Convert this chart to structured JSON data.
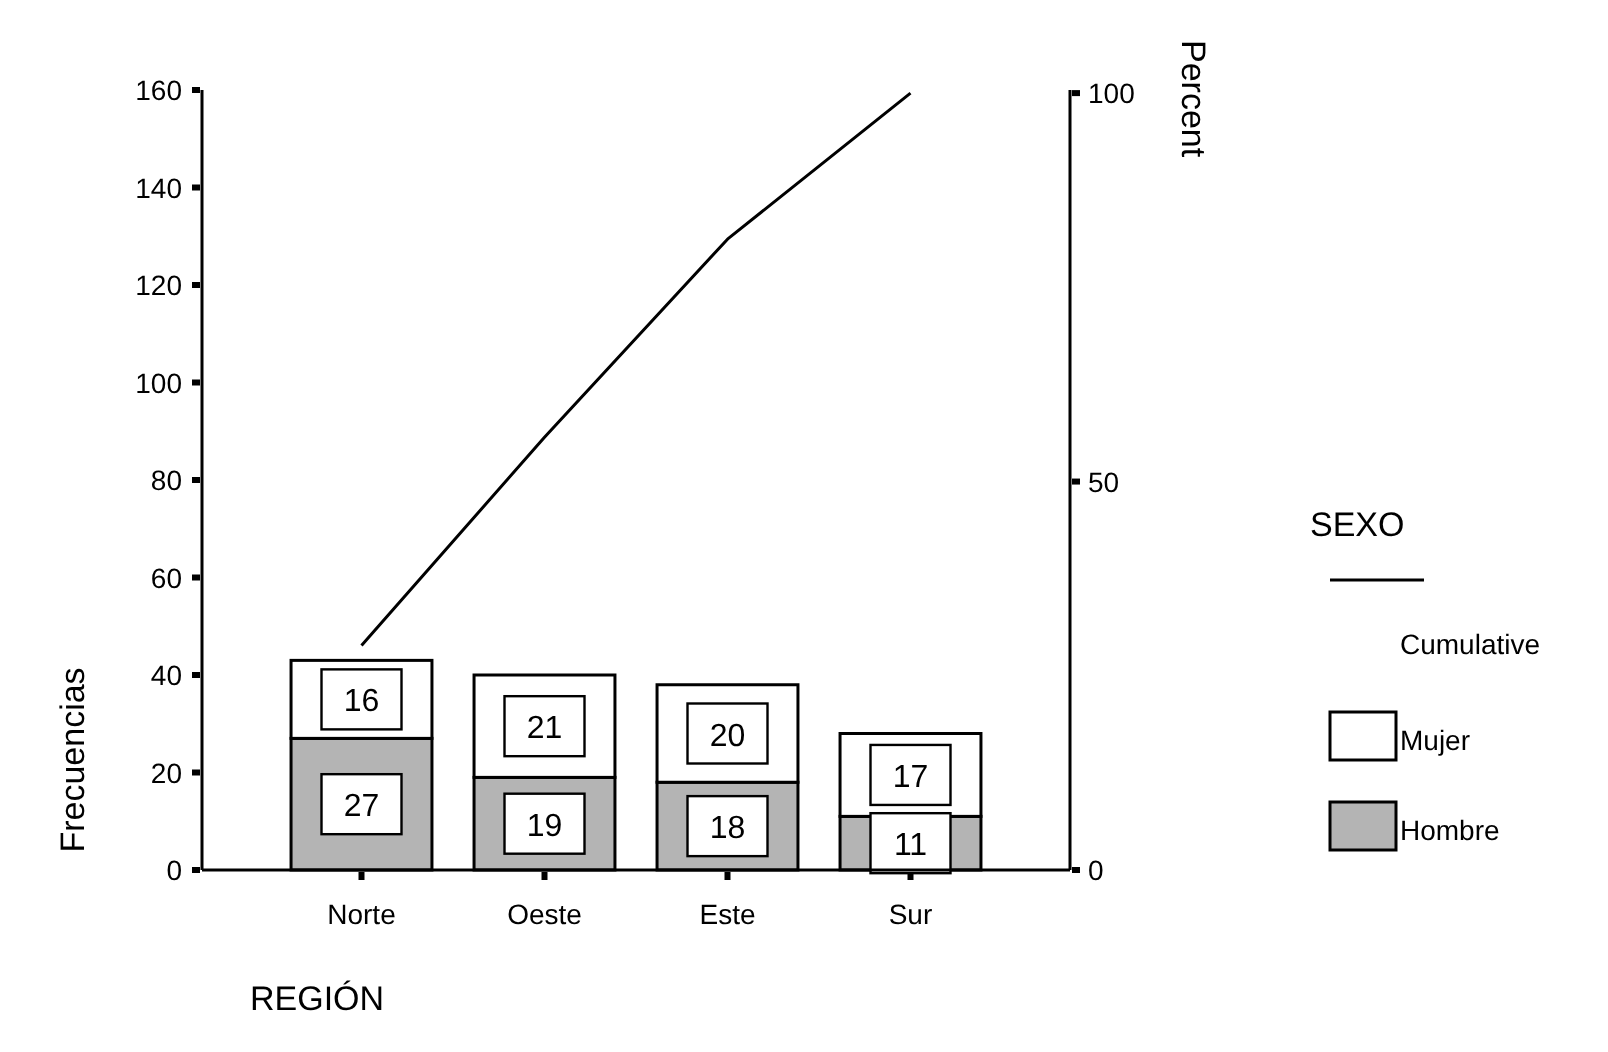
{
  "chart_data": {
    "type": "bar",
    "stacked": true,
    "xlabel": "REGIÓN",
    "ylabel": "Frecuencias",
    "y2label": "Percent",
    "legend_title": "SEXO",
    "categories": [
      "Norte",
      "Oeste",
      "Este",
      "Sur"
    ],
    "series": [
      {
        "name": "Hombre",
        "color": "#b4b4b4",
        "values": [
          27,
          19,
          18,
          11
        ],
        "value_labels": [
          "27",
          "19",
          "18",
          "11"
        ]
      },
      {
        "name": "Mujer",
        "color": "#ffffff",
        "values": [
          16,
          21,
          20,
          17
        ],
        "value_labels": [
          "16",
          "21",
          "20",
          "17"
        ]
      },
      {
        "name": "Cumulative",
        "type": "line",
        "axis": "y2",
        "color": "#000000",
        "values": [
          28.9,
          55.7,
          81.2,
          100
        ]
      }
    ],
    "ylim": [
      0,
      160
    ],
    "yticks": [
      0,
      20,
      40,
      60,
      80,
      100,
      120,
      140,
      160
    ],
    "y2lim": [
      0,
      100.4
    ],
    "y2ticks": [
      0,
      50,
      100
    ],
    "legend": "right",
    "grid": false
  }
}
